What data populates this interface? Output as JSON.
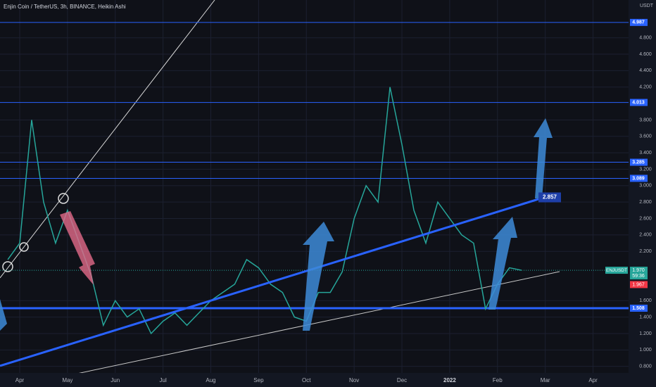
{
  "chart_data": {
    "type": "line",
    "title": "Enjin Coin / TetherUS, 3h, BINANCE, Heikin Ashi",
    "currency": "USDT",
    "symbol": "ENJUSDT",
    "countdown": "59:36",
    "categories": [
      null,
      "Apr",
      null,
      null,
      null,
      "May",
      null,
      null,
      null,
      "Jun",
      null,
      null,
      null,
      "Jul",
      null,
      null,
      null,
      "Aug",
      null,
      null,
      null,
      "Sep",
      null,
      null,
      null,
      "Oct",
      null,
      null,
      null,
      "Nov",
      null,
      null,
      null,
      "Dec",
      null,
      null,
      null,
      "2022",
      null,
      null,
      null,
      "Feb",
      null,
      null,
      null,
      "Mar",
      null,
      null,
      null,
      "Apr"
    ],
    "series": [
      {
        "name": "ENJUSDT",
        "color": "#26a69a",
        "values": [
          2.1,
          2.3,
          3.8,
          2.8,
          2.3,
          2.7,
          2.3,
          1.9,
          1.3,
          1.6,
          1.4,
          1.5,
          1.2,
          1.35,
          1.45,
          1.3,
          1.45,
          1.6,
          1.7,
          1.8,
          2.1,
          2.0,
          1.8,
          1.7,
          1.4,
          1.35,
          1.7,
          1.7,
          1.95,
          2.6,
          3.0,
          2.8,
          4.2,
          3.5,
          2.7,
          2.3,
          2.8,
          2.6,
          2.4,
          2.3,
          1.5,
          1.8,
          2.0,
          1.97,
          null,
          null,
          null,
          null,
          null,
          null
        ]
      }
    ],
    "ylim": [
      0.72,
      5.26
    ],
    "yticks": [
      {
        "value": 0.8,
        "label": "0.800"
      },
      {
        "value": 1.0,
        "label": "1.000"
      },
      {
        "value": 1.2,
        "label": "1.200"
      },
      {
        "value": 1.4,
        "label": "1.400"
      },
      {
        "value": 1.6,
        "label": "1.600"
      },
      {
        "value": 2.2,
        "label": "2.200"
      },
      {
        "value": 2.4,
        "label": "2.400"
      },
      {
        "value": 2.6,
        "label": "2.600"
      },
      {
        "value": 2.8,
        "label": "2.800"
      },
      {
        "value": 3.0,
        "label": "3.000"
      },
      {
        "value": 3.2,
        "label": "3.200"
      },
      {
        "value": 3.4,
        "label": "3.400"
      },
      {
        "value": 3.6,
        "label": "3.600"
      },
      {
        "value": 3.8,
        "label": "3.800"
      },
      {
        "value": 4.2,
        "label": "4.200"
      },
      {
        "value": 4.4,
        "label": "4.400"
      },
      {
        "value": 4.6,
        "label": "4.600"
      },
      {
        "value": 4.8,
        "label": "4.800"
      }
    ],
    "levels": [
      4.987,
      4.013,
      3.285,
      3.089,
      1.508
    ],
    "trend_target": 2.857,
    "last_price": {
      "value": 1.97,
      "label": "1.970"
    },
    "prev_price": 1.967,
    "grid": true
  }
}
